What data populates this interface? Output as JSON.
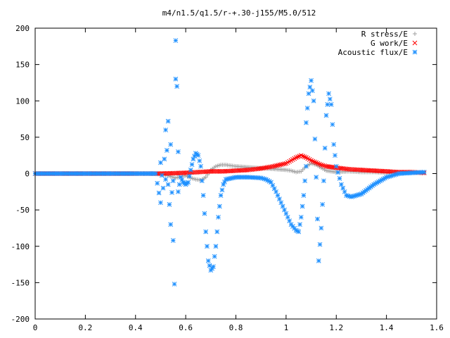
{
  "chart_data": {
    "type": "scatter",
    "title": "m4/n1.5/q1.5/r-+.30-j155/M5.0/512",
    "xlabel": "",
    "ylabel": "",
    "xlim": [
      0,
      1.6
    ],
    "ylim": [
      -200,
      200
    ],
    "x_ticks": [
      "0",
      "0.2",
      "0.4",
      "0.6",
      "0.8",
      "1",
      "1.2",
      "1.4",
      "1.6"
    ],
    "y_ticks": [
      "200",
      "150",
      "100",
      "50",
      "0",
      "-50",
      "-100",
      "-150",
      "-200"
    ],
    "grid": false,
    "legend_position": "top-right",
    "series": [
      {
        "name": "R stress/E",
        "marker": "plus",
        "color": "#a0a0a0",
        "points": [
          [
            0,
            0
          ],
          [
            0.1,
            0
          ],
          [
            0.2,
            0
          ],
          [
            0.3,
            0
          ],
          [
            0.4,
            0
          ],
          [
            0.45,
            0
          ],
          [
            0.5,
            -1
          ],
          [
            0.52,
            -2
          ],
          [
            0.54,
            -4
          ],
          [
            0.56,
            -6
          ],
          [
            0.58,
            -4
          ],
          [
            0.6,
            -3
          ],
          [
            0.62,
            -6
          ],
          [
            0.64,
            -8
          ],
          [
            0.66,
            -9
          ],
          [
            0.68,
            -5
          ],
          [
            0.7,
            5
          ],
          [
            0.72,
            10
          ],
          [
            0.74,
            12
          ],
          [
            0.76,
            12
          ],
          [
            0.78,
            11
          ],
          [
            0.8,
            10
          ],
          [
            0.84,
            9
          ],
          [
            0.88,
            8
          ],
          [
            0.92,
            7
          ],
          [
            0.96,
            6
          ],
          [
            1.0,
            5
          ],
          [
            1.02,
            4
          ],
          [
            1.04,
            2
          ],
          [
            1.06,
            3
          ],
          [
            1.08,
            10
          ],
          [
            1.1,
            14
          ],
          [
            1.12,
            12
          ],
          [
            1.14,
            8
          ],
          [
            1.16,
            4
          ],
          [
            1.2,
            2
          ],
          [
            1.25,
            3
          ],
          [
            1.3,
            2
          ],
          [
            1.35,
            2
          ],
          [
            1.4,
            1
          ],
          [
            1.45,
            1
          ],
          [
            1.5,
            1
          ],
          [
            1.55,
            1
          ]
        ]
      },
      {
        "name": "G work/E",
        "marker": "cross",
        "color": "#ff0000",
        "points": [
          [
            0,
            0
          ],
          [
            0.1,
            0
          ],
          [
            0.2,
            0
          ],
          [
            0.3,
            0
          ],
          [
            0.4,
            0
          ],
          [
            0.45,
            0
          ],
          [
            0.5,
            0
          ],
          [
            0.55,
            0.5
          ],
          [
            0.6,
            1
          ],
          [
            0.65,
            2
          ],
          [
            0.7,
            3
          ],
          [
            0.75,
            3
          ],
          [
            0.8,
            4
          ],
          [
            0.85,
            5
          ],
          [
            0.9,
            7
          ],
          [
            0.95,
            10
          ],
          [
            1.0,
            14
          ],
          [
            1.02,
            18
          ],
          [
            1.04,
            22
          ],
          [
            1.06,
            25
          ],
          [
            1.08,
            22
          ],
          [
            1.1,
            18
          ],
          [
            1.12,
            15
          ],
          [
            1.14,
            12
          ],
          [
            1.16,
            10
          ],
          [
            1.2,
            8
          ],
          [
            1.25,
            6
          ],
          [
            1.3,
            5
          ],
          [
            1.35,
            4
          ],
          [
            1.4,
            3
          ],
          [
            1.45,
            2
          ],
          [
            1.5,
            2
          ],
          [
            1.55,
            1
          ]
        ]
      },
      {
        "name": "Acoustic flux/E",
        "marker": "star",
        "color": "#1e90ff",
        "points": [
          [
            0,
            0
          ],
          [
            0.05,
            0
          ],
          [
            0.1,
            0
          ],
          [
            0.15,
            0
          ],
          [
            0.2,
            0
          ],
          [
            0.25,
            0
          ],
          [
            0.3,
            0
          ],
          [
            0.35,
            0
          ],
          [
            0.4,
            0
          ],
          [
            0.45,
            0
          ],
          [
            0.48,
            0
          ],
          [
            0.5,
            -40
          ],
          [
            0.5,
            15
          ],
          [
            0.51,
            -20
          ],
          [
            0.52,
            60
          ],
          [
            0.52,
            -8
          ],
          [
            0.53,
            72
          ],
          [
            0.53,
            -15
          ],
          [
            0.54,
            -70
          ],
          [
            0.54,
            40
          ],
          [
            0.55,
            -92
          ],
          [
            0.55,
            -10
          ],
          [
            0.555,
            -152
          ],
          [
            0.56,
            183
          ],
          [
            0.56,
            130
          ],
          [
            0.565,
            120
          ],
          [
            0.57,
            30
          ],
          [
            0.57,
            -25
          ],
          [
            0.58,
            -5
          ],
          [
            0.59,
            -12
          ],
          [
            0.6,
            -15
          ],
          [
            0.61,
            -12
          ],
          [
            0.62,
            5
          ],
          [
            0.63,
            20
          ],
          [
            0.64,
            28
          ],
          [
            0.65,
            25
          ],
          [
            0.66,
            10
          ],
          [
            0.67,
            -30
          ],
          [
            0.68,
            -80
          ],
          [
            0.69,
            -120
          ],
          [
            0.7,
            -133
          ],
          [
            0.71,
            -128
          ],
          [
            0.72,
            -100
          ],
          [
            0.73,
            -60
          ],
          [
            0.74,
            -30
          ],
          [
            0.75,
            -15
          ],
          [
            0.76,
            -8
          ],
          [
            0.8,
            -5
          ],
          [
            0.85,
            -5
          ],
          [
            0.9,
            -6
          ],
          [
            0.92,
            -8
          ],
          [
            0.94,
            -12
          ],
          [
            0.96,
            -25
          ],
          [
            0.98,
            -40
          ],
          [
            1.0,
            -55
          ],
          [
            1.02,
            -70
          ],
          [
            1.04,
            -78
          ],
          [
            1.05,
            -80
          ],
          [
            1.06,
            -60
          ],
          [
            1.07,
            -30
          ],
          [
            1.08,
            10
          ],
          [
            1.08,
            70
          ],
          [
            1.09,
            110
          ],
          [
            1.1,
            128
          ],
          [
            1.11,
            100
          ],
          [
            1.12,
            -5
          ],
          [
            1.13,
            -120
          ],
          [
            1.14,
            -75
          ],
          [
            1.15,
            -10
          ],
          [
            1.16,
            80
          ],
          [
            1.17,
            110
          ],
          [
            1.18,
            95
          ],
          [
            1.19,
            40
          ],
          [
            1.2,
            10
          ],
          [
            1.22,
            -15
          ],
          [
            1.24,
            -30
          ],
          [
            1.26,
            -32
          ],
          [
            1.3,
            -28
          ],
          [
            1.35,
            -15
          ],
          [
            1.4,
            -5
          ],
          [
            1.45,
            0
          ],
          [
            1.5,
            1
          ],
          [
            1.55,
            2
          ]
        ]
      }
    ]
  }
}
